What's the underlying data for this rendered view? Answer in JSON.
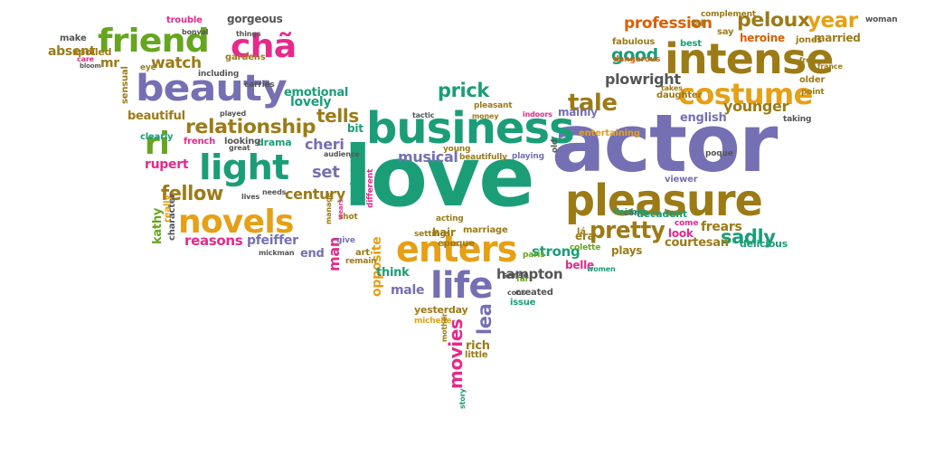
{
  "colors": {
    "green": "#1b9e77",
    "olive": "#9c7b17",
    "orange": "#e6a015",
    "purple": "#7570b3",
    "pink": "#e7298a",
    "red": "#d95f02",
    "lime": "#66a61e",
    "gray": "#555555"
  },
  "words": [
    "love",
    "actor",
    "business",
    "pleasure",
    "intense",
    "beauty",
    "enters",
    "light",
    "costume",
    "life",
    "novels",
    "friend",
    "chã",
    "relationship",
    "ri",
    "fellow",
    "pretty",
    "peloux",
    "year",
    "tale",
    "profession",
    "prick",
    "watch",
    "sadly",
    "good",
    "tells",
    "plowright",
    "man",
    "movies",
    "lea",
    "set",
    "century",
    "younger",
    "hampton",
    "musical",
    "cheri",
    "absent",
    "gorgeous",
    "mr",
    "opposite",
    "strong",
    "heroine",
    "married",
    "emotional",
    "beautiful",
    "rupert",
    "reasons",
    "pfeiffer",
    "kathy",
    "english",
    "mainly",
    "frears",
    "courtesan",
    "delicious",
    "look",
    "plays",
    "belle",
    "era",
    "hair",
    "marriage",
    "male",
    "think",
    "created",
    "issue",
    "yesterday",
    "michelle",
    "rich",
    "little",
    "lovely",
    "bit",
    "end",
    "drama",
    "looking",
    "french",
    "character",
    "really",
    "spoiled",
    "make",
    "clearly",
    "sensual",
    "best",
    "fabulous",
    "dangerous",
    "older",
    "point",
    "jones",
    "fred",
    "france",
    "woman",
    "fall",
    "say",
    "viewer",
    "decadent",
    "con",
    "liaisons",
    "women",
    "far",
    "paris",
    "art",
    "remain",
    "give",
    "shot",
    "adaptation",
    "sense",
    "colette",
    "cons",
    "epoque",
    "poque",
    "acting",
    "settings",
    "daughter",
    "entertaining",
    "takes",
    "taking",
    "pleasant",
    "money",
    "indoors",
    "tactic",
    "young",
    "beautifully",
    "playing",
    "trouble",
    "bonval",
    "things",
    "including",
    "carries",
    "gardens",
    "played",
    "eye",
    "care",
    "bloom",
    "great",
    "lives",
    "needs",
    "audience",
    "mother",
    "story",
    "different",
    "manage",
    "wears",
    "old",
    "complement",
    "lá",
    "come",
    "mickman"
  ]
}
